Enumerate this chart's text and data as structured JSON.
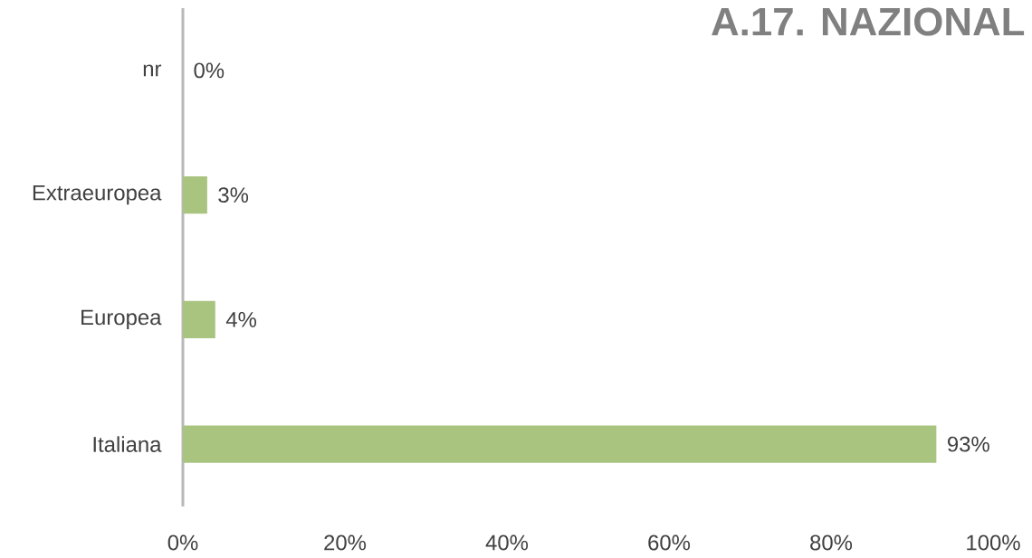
{
  "chart_data": {
    "type": "bar",
    "orientation": "horizontal",
    "title": "A.17. NAZIONAL",
    "categories": [
      "nr",
      "Extraeuropea",
      "Europea",
      "Italiana"
    ],
    "values": [
      0,
      3,
      4,
      93
    ],
    "value_labels": [
      "0%",
      "3%",
      "4%",
      "93%"
    ],
    "color": "#a9c47f",
    "xlim": [
      0,
      100
    ],
    "xticks": [
      {
        "value": 0,
        "label": "0%"
      },
      {
        "value": 20,
        "label": "20%"
      },
      {
        "value": 40,
        "label": "40%"
      },
      {
        "value": 60,
        "label": "60%"
      },
      {
        "value": 80,
        "label": "80%"
      },
      {
        "value": 100,
        "label": "100%"
      }
    ],
    "grid": false
  }
}
